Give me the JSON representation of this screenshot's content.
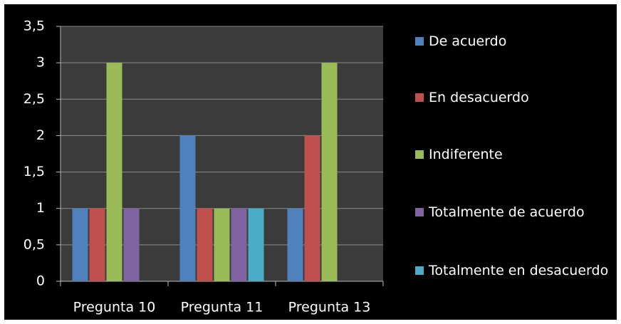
{
  "chart_data": {
    "type": "bar",
    "categories": [
      "Pregunta 10",
      "Pregunta 11",
      "Pregunta 13"
    ],
    "series": [
      {
        "name": "De acuerdo",
        "color": "#4f81bd",
        "values": [
          1,
          2,
          1
        ]
      },
      {
        "name": "En desacuerdo",
        "color": "#c0504d",
        "values": [
          1,
          1,
          2
        ]
      },
      {
        "name": "Indiferente",
        "color": "#9bbb59",
        "values": [
          3,
          1,
          3
        ]
      },
      {
        "name": "Totalmente de acuerdo",
        "color": "#8064a2",
        "values": [
          1,
          1,
          0
        ]
      },
      {
        "name": "Totalmente en desacuerdo",
        "color": "#4bacc6",
        "values": [
          0,
          1,
          0
        ]
      }
    ],
    "ylim": [
      0,
      3.5
    ],
    "yticks": [
      0,
      {
        "value": 0.5,
        "label": "0,5"
      },
      1,
      {
        "value": 1.5,
        "label": "1,5"
      },
      2,
      {
        "value": 2.5,
        "label": "2,5"
      },
      3,
      {
        "value": 3.5,
        "label": "3,5"
      }
    ],
    "grid": true,
    "legend": "right"
  }
}
